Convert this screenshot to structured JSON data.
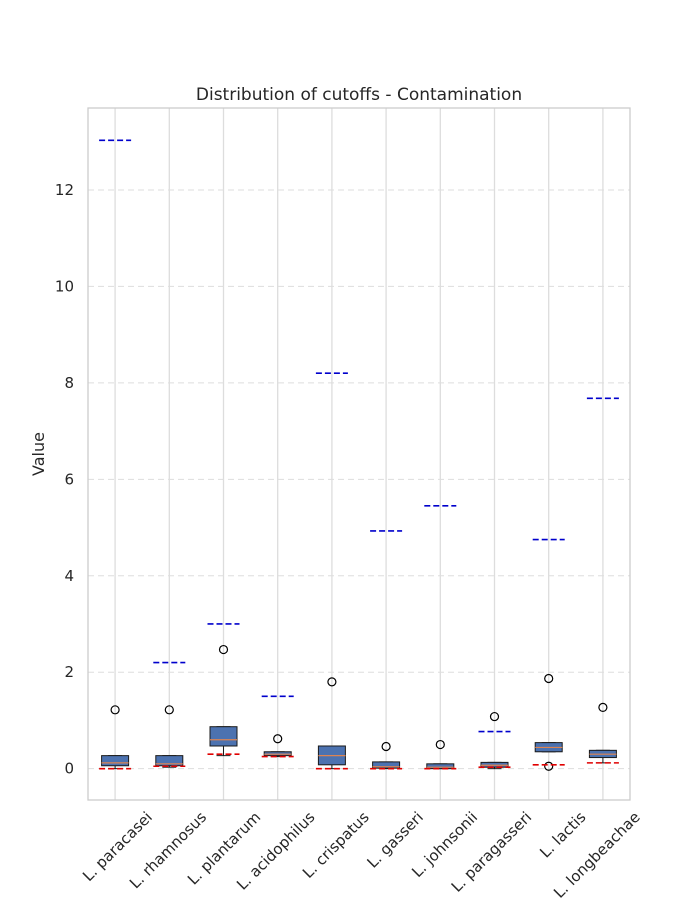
{
  "chart_data": {
    "type": "box",
    "title": "Distribution of cutoffs - Contamination",
    "xlabel": "",
    "ylabel": "Value",
    "ylim": [
      -0.65,
      13.7
    ],
    "yticks": [
      0,
      2,
      4,
      6,
      8,
      10,
      12
    ],
    "grid": "y-dashed",
    "categories": [
      "L. paracasei",
      "L. rhamnosus",
      "L. plantarum",
      "L. acidophilus",
      "L. crispatus",
      "L. gasseri",
      "L. johnsonii",
      "L. paragasseri",
      "L. lactis",
      "L. longbeachae"
    ],
    "boxes": [
      {
        "q1": 0.06,
        "median": 0.12,
        "q3": 0.27,
        "whisker_low": 0.0,
        "whisker_high": 0.27,
        "outliers": [
          1.22
        ],
        "red_line": 0.0,
        "blue_line": 13.03
      },
      {
        "q1": 0.06,
        "median": 0.1,
        "q3": 0.27,
        "whisker_low": 0.03,
        "whisker_high": 0.27,
        "outliers": [
          1.22
        ],
        "red_line": 0.05,
        "blue_line": 2.2
      },
      {
        "q1": 0.47,
        "median": 0.6,
        "q3": 0.87,
        "whisker_low": 0.27,
        "whisker_high": 0.87,
        "outliers": [
          2.47
        ],
        "red_line": 0.3,
        "blue_line": 3.0
      },
      {
        "q1": 0.27,
        "median": 0.3,
        "q3": 0.35,
        "whisker_low": 0.25,
        "whisker_high": 0.35,
        "outliers": [
          0.62
        ],
        "red_line": 0.25,
        "blue_line": 1.5
      },
      {
        "q1": 0.08,
        "median": 0.27,
        "q3": 0.47,
        "whisker_low": 0.0,
        "whisker_high": 0.47,
        "outliers": [
          1.8
        ],
        "red_line": 0.0,
        "blue_line": 8.2
      },
      {
        "q1": 0.01,
        "median": 0.04,
        "q3": 0.14,
        "whisker_low": 0.0,
        "whisker_high": 0.14,
        "outliers": [
          0.46
        ],
        "red_line": 0.0,
        "blue_line": 4.93
      },
      {
        "q1": 0.0,
        "median": 0.03,
        "q3": 0.1,
        "whisker_low": 0.0,
        "whisker_high": 0.1,
        "outliers": [
          0.5
        ],
        "red_line": 0.0,
        "blue_line": 5.45
      },
      {
        "q1": 0.03,
        "median": 0.07,
        "q3": 0.13,
        "whisker_low": 0.0,
        "whisker_high": 0.13,
        "outliers": [
          1.08
        ],
        "red_line": 0.03,
        "blue_line": 0.77
      },
      {
        "q1": 0.35,
        "median": 0.44,
        "q3": 0.54,
        "whisker_low": 0.35,
        "whisker_high": 0.54,
        "outliers": [
          1.87,
          0.05
        ],
        "red_line": 0.08,
        "blue_line": 4.75
      },
      {
        "q1": 0.23,
        "median": 0.3,
        "q3": 0.38,
        "whisker_low": 0.12,
        "whisker_high": 0.38,
        "outliers": [
          1.27
        ],
        "red_line": 0.12,
        "blue_line": 7.68
      }
    ],
    "colors": {
      "box_fill": "#4c72b0",
      "box_edge": "#1a1a1a",
      "median": "#dd8452",
      "red_line": "#e00000",
      "blue_line": "#0000cc",
      "grid": "#dddddd",
      "frame": "#cccccc"
    }
  }
}
